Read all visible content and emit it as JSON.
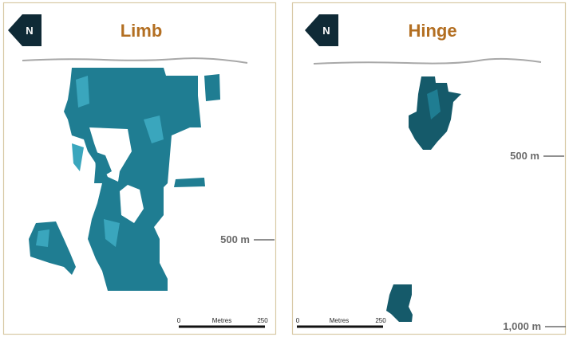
{
  "panels": [
    {
      "title": "Limb",
      "north": "N",
      "depth_labels": [
        "500 m"
      ],
      "scale_bar": {
        "start": "0",
        "unit": "Metres",
        "end": "250"
      }
    },
    {
      "title": "Hinge",
      "north": "N",
      "depth_labels": [
        "500 m",
        "1,000 m"
      ],
      "scale_bar": {
        "start": "0",
        "unit": "Metres",
        "end": "250"
      }
    }
  ]
}
